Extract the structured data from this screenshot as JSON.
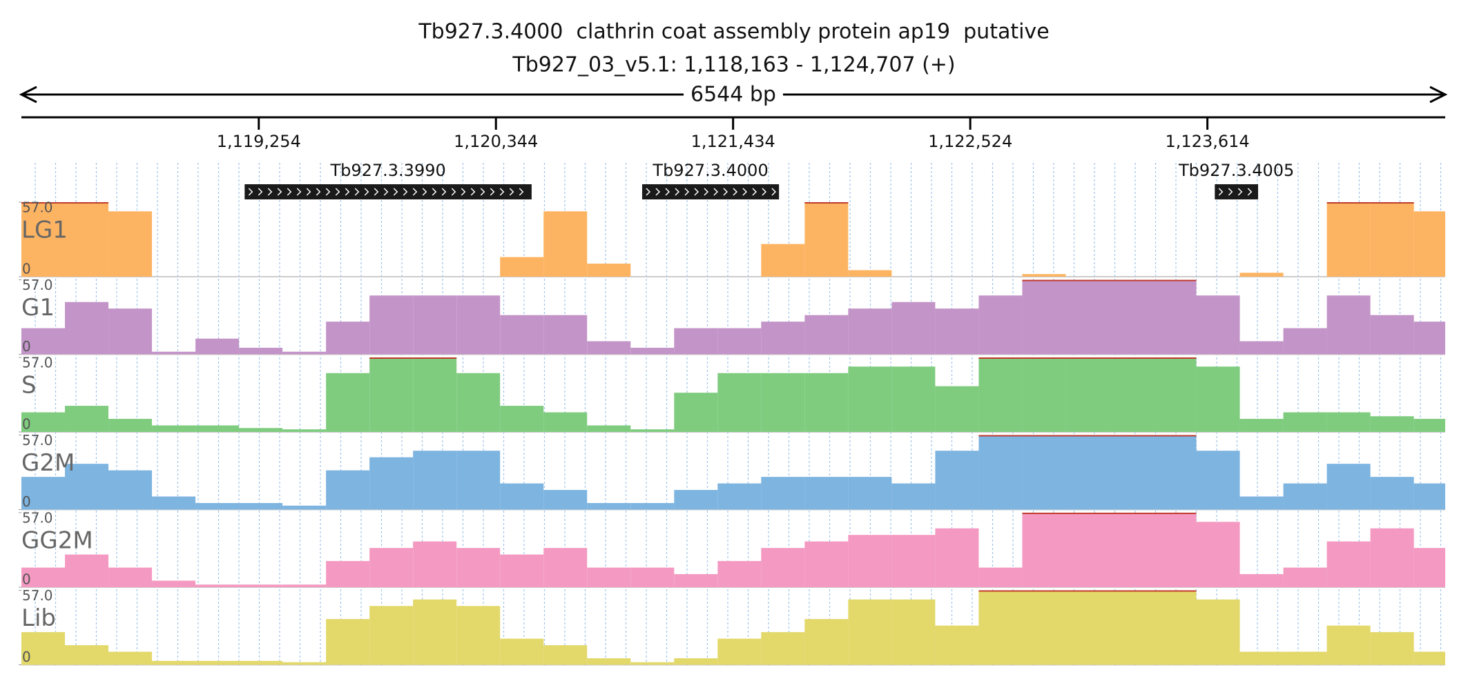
{
  "chart_data": {
    "type": "coverage",
    "title": "Tb927.3.4000  clathrin coat assembly protein ap19  putative",
    "subtitle": "Tb927_03_v5.1: 1,118,163 - 1,124,707 (+)",
    "span_label": "6544 bp",
    "xlim": [
      1118163,
      1124707
    ],
    "xticks": [
      {
        "value": 1119254,
        "label": "1,119,254"
      },
      {
        "value": 1120344,
        "label": "1,120,344"
      },
      {
        "value": 1121434,
        "label": "1,121,434"
      },
      {
        "value": 1122524,
        "label": "1,122,524"
      },
      {
        "value": 1123614,
        "label": "1,123,614"
      }
    ],
    "genes": [
      {
        "name": "Tb927.3.3990",
        "start": 1119189,
        "end": 1120508
      },
      {
        "name": "Tb927.3.4000",
        "start": 1121016,
        "end": 1121645
      },
      {
        "name": "Tb927.3.4005",
        "start": 1123648,
        "end": 1123847
      }
    ],
    "ylim": [
      0,
      57
    ],
    "yticks": [
      0,
      {
        "value": 57,
        "label": "57.0"
      }
    ],
    "x": [
      1118163,
      1118363,
      1118563,
      1118763,
      1118963,
      1119163,
      1119363,
      1119563,
      1119763,
      1119963,
      1120163,
      1120363,
      1120563,
      1120763,
      1120963,
      1121163,
      1121363,
      1121563,
      1121763,
      1121963,
      1122163,
      1122363,
      1122563,
      1122763,
      1122963,
      1123163,
      1123363,
      1123563,
      1123763,
      1123963,
      1124163,
      1124363,
      1124563
    ],
    "series": [
      {
        "name": "LG1",
        "color": "#fdb462",
        "values": [
          57,
          57,
          50,
          0,
          0,
          0,
          0,
          0,
          0,
          0,
          0,
          15,
          50,
          10,
          0,
          0,
          0,
          25,
          57,
          5,
          0,
          0,
          0,
          2,
          0,
          0,
          0,
          0,
          3,
          0,
          57,
          57,
          50
        ]
      },
      {
        "name": "G1",
        "color": "#c394c8",
        "values": [
          20,
          40,
          35,
          2,
          12,
          5,
          2,
          25,
          45,
          45,
          45,
          30,
          30,
          10,
          5,
          20,
          20,
          25,
          30,
          35,
          40,
          35,
          45,
          57,
          57,
          57,
          57,
          45,
          10,
          20,
          45,
          30,
          25
        ]
      },
      {
        "name": "S",
        "color": "#7fcc7f",
        "values": [
          15,
          20,
          10,
          5,
          5,
          3,
          2,
          45,
          57,
          57,
          45,
          20,
          15,
          5,
          2,
          30,
          45,
          45,
          45,
          50,
          50,
          35,
          57,
          57,
          57,
          57,
          57,
          50,
          10,
          15,
          15,
          12,
          10
        ]
      },
      {
        "name": "G2M",
        "color": "#7db4e0",
        "values": [
          25,
          35,
          30,
          10,
          5,
          5,
          3,
          30,
          40,
          45,
          45,
          20,
          15,
          5,
          5,
          15,
          20,
          25,
          25,
          25,
          20,
          45,
          57,
          57,
          57,
          57,
          57,
          45,
          10,
          20,
          35,
          25,
          20
        ]
      },
      {
        "name": "GG2M",
        "color": "#f49ac2",
        "values": [
          15,
          25,
          15,
          5,
          2,
          2,
          2,
          20,
          30,
          35,
          30,
          25,
          30,
          15,
          15,
          10,
          20,
          30,
          35,
          40,
          40,
          45,
          15,
          57,
          57,
          57,
          57,
          50,
          10,
          15,
          35,
          45,
          30
        ]
      },
      {
        "name": "Lib",
        "color": "#e3d86a",
        "values": [
          25,
          15,
          10,
          3,
          3,
          3,
          2,
          35,
          45,
          50,
          45,
          20,
          15,
          5,
          2,
          5,
          20,
          25,
          35,
          50,
          50,
          30,
          57,
          57,
          57,
          57,
          57,
          50,
          10,
          10,
          30,
          25,
          10
        ]
      }
    ]
  }
}
